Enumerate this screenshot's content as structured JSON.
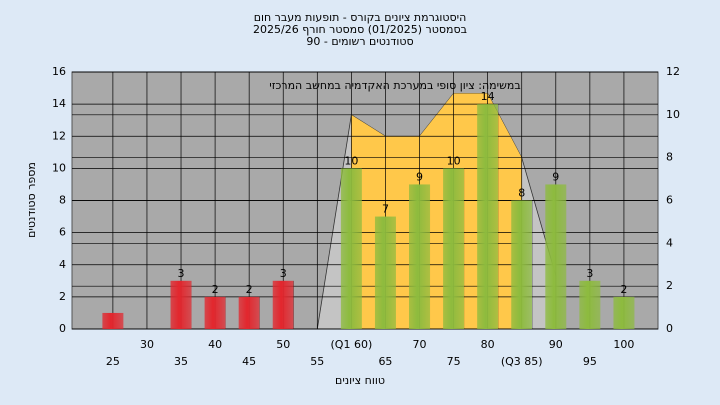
{
  "chart_data": {
    "type": "bar",
    "title": [
      "היסטוגרמת ציונים בקורס - תופעות מעבר חום",
      "בסמסטר  (01/2025)  סמסטר חורף 2025/26",
      "סטודנטים רשומים - 90"
    ],
    "annotation": "במשימה: ציון סופי במערכת האקדמיה במחשב המרכזי",
    "x_label": "טווח ציונים",
    "y_label": "מספר סטודנטים",
    "x": [
      25,
      30,
      35,
      40,
      45,
      50,
      55,
      60,
      65,
      70,
      75,
      80,
      85,
      90,
      95,
      100
    ],
    "values": [
      1,
      0,
      3,
      2,
      2,
      3,
      0,
      10,
      7,
      9,
      10,
      14,
      8,
      9,
      3,
      2
    ],
    "value_labels": [
      null,
      null,
      "3",
      "2",
      "2",
      "3",
      null,
      "10",
      "7",
      "9",
      "10",
      "14",
      "8",
      "9",
      "3",
      "2"
    ],
    "colors": [
      "#e3262d",
      "#e3262d",
      "#e3262d",
      "#e3262d",
      "#e3262d",
      "#e3262d",
      "#e3262d",
      "#8dbb3e",
      "#8dbb3e",
      "#8dbb3e",
      "#8dbb3e",
      "#8dbb3e",
      "#8dbb3e",
      "#8dbb3e",
      "#8dbb3e",
      "#8dbb3e"
    ],
    "areas": [
      {
        "color": "#c4c4c4",
        "axis": "y2",
        "x": [
          55,
          60,
          65,
          70,
          75,
          80,
          85,
          90
        ],
        "values": [
          0,
          10,
          9,
          9,
          11,
          11,
          8,
          2.5
        ]
      },
      {
        "color": "#ffc84a",
        "axis": "y2",
        "x": [
          60,
          65,
          70,
          75,
          80,
          85
        ],
        "values": [
          10,
          9,
          9,
          11,
          11,
          8
        ]
      }
    ],
    "xlim": [
      19,
      105
    ],
    "xticks": [
      25,
      30,
      35,
      40,
      45,
      50,
      55,
      {
        "value": 60,
        "label": "(Q1 60)"
      },
      65,
      70,
      75,
      80,
      {
        "value": 85,
        "label": "(Q3 85)"
      },
      90,
      95,
      100
    ],
    "ylim": [
      0,
      16
    ],
    "yticks": [
      0,
      2,
      4,
      6,
      8,
      10,
      12,
      14,
      16
    ],
    "y2lim": [
      0,
      12
    ],
    "y2ticks": [
      0,
      2,
      4,
      6,
      8,
      10,
      12
    ],
    "grid": true
  }
}
